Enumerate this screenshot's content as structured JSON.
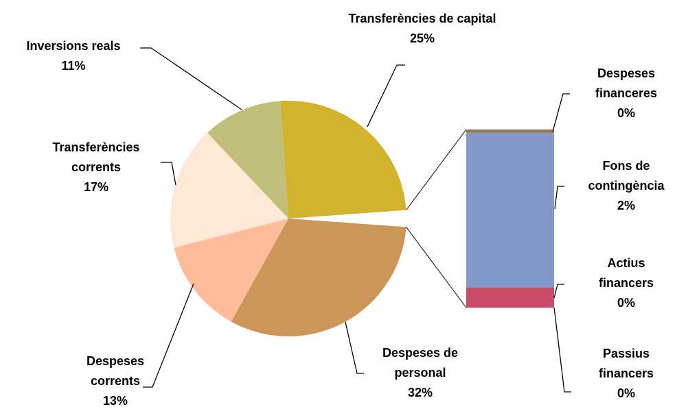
{
  "chart_data": {
    "type": "pie-of-bar",
    "pie": {
      "categories": [
        "Transferències de capital",
        "Despeses de personal",
        "Despeses corrents",
        "Transferències corrents",
        "Inversions reals"
      ],
      "values": [
        25,
        32,
        13,
        17,
        11
      ],
      "value_labels": [
        "25%",
        "32%",
        "13%",
        "17%",
        "11%"
      ],
      "colors": [
        "#D2B32E",
        "#CC9658",
        "#FFBC9A",
        "#FFE8D6",
        "#BFBF7A"
      ]
    },
    "bar": {
      "categories": [
        "Passius financers",
        "Actius financers",
        "Fons de contingència",
        "Despeses financeres"
      ],
      "values": [
        0.0,
        0.26,
        2.0,
        0.04
      ],
      "value_labels": [
        "0%",
        "0%",
        "2%",
        "0%"
      ],
      "colors": [
        "#7F6F9A",
        "#C94B68",
        "#8399C9",
        "#9C7A4F"
      ]
    }
  }
}
